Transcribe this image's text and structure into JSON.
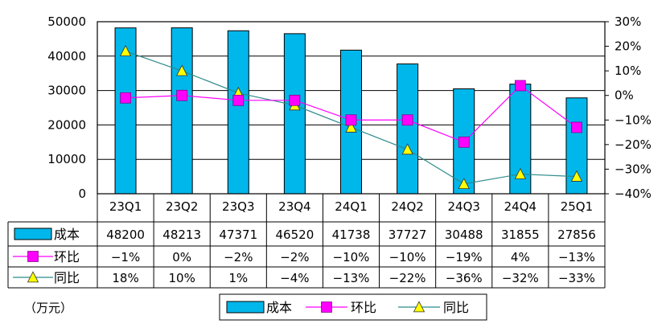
{
  "chart_data": {
    "type": "bar",
    "unit_label": "（万元）",
    "categories": [
      "23Q1",
      "23Q2",
      "23Q3",
      "23Q4",
      "24Q1",
      "24Q2",
      "24Q3",
      "24Q4",
      "25Q1"
    ],
    "series": [
      {
        "name": "成本",
        "type": "bar",
        "axis": "left",
        "values": [
          48200,
          48213,
          47371,
          46520,
          41738,
          37727,
          30488,
          31855,
          27856
        ],
        "labels": [
          "48200",
          "48213",
          "47371",
          "46520",
          "41738",
          "37727",
          "30488",
          "31855",
          "27856"
        ],
        "color": "#00B7EB"
      },
      {
        "name": "环比",
        "type": "line",
        "axis": "right",
        "values": [
          -1,
          0,
          -2,
          -2,
          -10,
          -10,
          -19,
          4,
          -13
        ],
        "labels": [
          "−1%",
          "0%",
          "−2%",
          "−2%",
          "−10%",
          "−10%",
          "−19%",
          "4%",
          "−13%"
        ],
        "color": "#FF00FF",
        "marker": "square"
      },
      {
        "name": "同比",
        "type": "line",
        "axis": "right",
        "values": [
          18,
          10,
          1,
          -4,
          -13,
          -22,
          -36,
          -32,
          -33
        ],
        "labels": [
          "18%",
          "10%",
          "1%",
          "−4%",
          "−13%",
          "−22%",
          "−36%",
          "−32%",
          "−33%"
        ],
        "color": "#2E8B8B",
        "marker": "triangle",
        "marker_color": "#FFFF00"
      }
    ],
    "y_left": {
      "min": 0,
      "max": 50000,
      "ticks": [
        "0",
        "10000",
        "20000",
        "30000",
        "40000",
        "50000"
      ]
    },
    "y_right": {
      "min": -40,
      "max": 30,
      "ticks": [
        "-40%",
        "-30%",
        "-20%",
        "-10%",
        "0%",
        "10%",
        "20%",
        "30%"
      ]
    },
    "grid": true,
    "legend_position": "bottom",
    "data_table": true
  }
}
